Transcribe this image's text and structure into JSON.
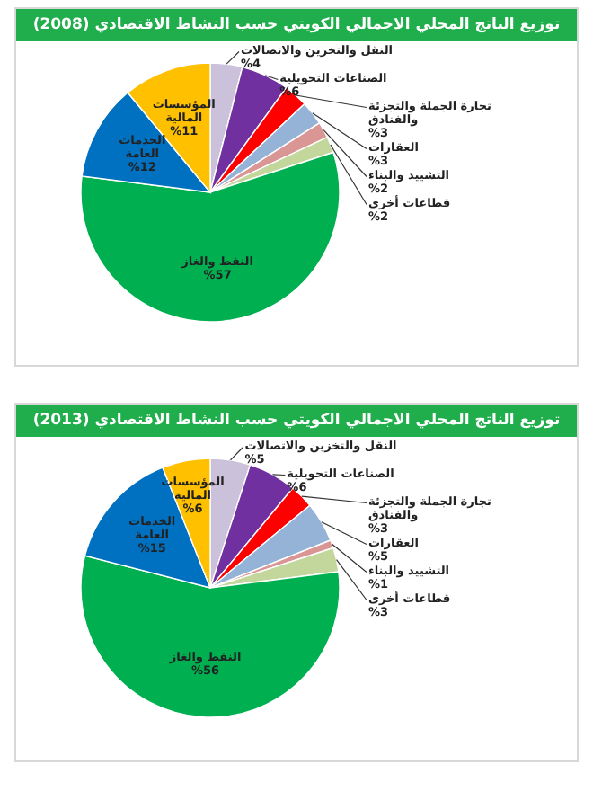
{
  "chart_data": [
    {
      "type": "pie",
      "title": "توزيع الناتج المحلي الاجمالي الكويتي حسب النشاط الاقتصادي (2008)",
      "categories": [
        "النقل والتخزين والاتصالات",
        "الصناعات التحويلية",
        "تجارة الجملة والتجزئة والفنادق",
        "العقارات",
        "التشييد والبناء",
        "قطاعات أخرى",
        "النفط والغاز",
        "الخدمات العامة",
        "المؤسسات المالية"
      ],
      "values": [
        4,
        6,
        3,
        3,
        2,
        2,
        57,
        12,
        11
      ],
      "value_labels": [
        "%4",
        "%6",
        "%3",
        "%3",
        "%2",
        "%2",
        "%57",
        "%12",
        "%11"
      ],
      "colors": [
        "#ccc1da",
        "#7030a0",
        "#ff0000",
        "#95b3d7",
        "#d99694",
        "#c3d69b",
        "#00b050",
        "#0070c0",
        "#ffc000"
      ]
    },
    {
      "type": "pie",
      "title": "توزيع الناتج المحلي الاجمالي الكويتي حسب النشاط الاقتصادي (2013)",
      "categories": [
        "النقل والتخزين والاتصالات",
        "الصناعات التحويلية",
        "تجارة الجملة والتجزئة والفنادق",
        "العقارات",
        "التشييد والبناء",
        "قطاعات أخرى",
        "النفط والغاز",
        "الخدمات العامة",
        "المؤسسات المالية"
      ],
      "values": [
        5,
        6,
        3,
        5,
        1,
        3,
        56,
        15,
        6
      ],
      "value_labels": [
        "%5",
        "%6",
        "%3",
        "%5",
        "%1",
        "%3",
        "%56",
        "%15",
        "%6"
      ],
      "colors": [
        "#ccc1da",
        "#7030a0",
        "#ff0000",
        "#95b3d7",
        "#d99694",
        "#c3d69b",
        "#00b050",
        "#0070c0",
        "#ffc000"
      ]
    }
  ]
}
